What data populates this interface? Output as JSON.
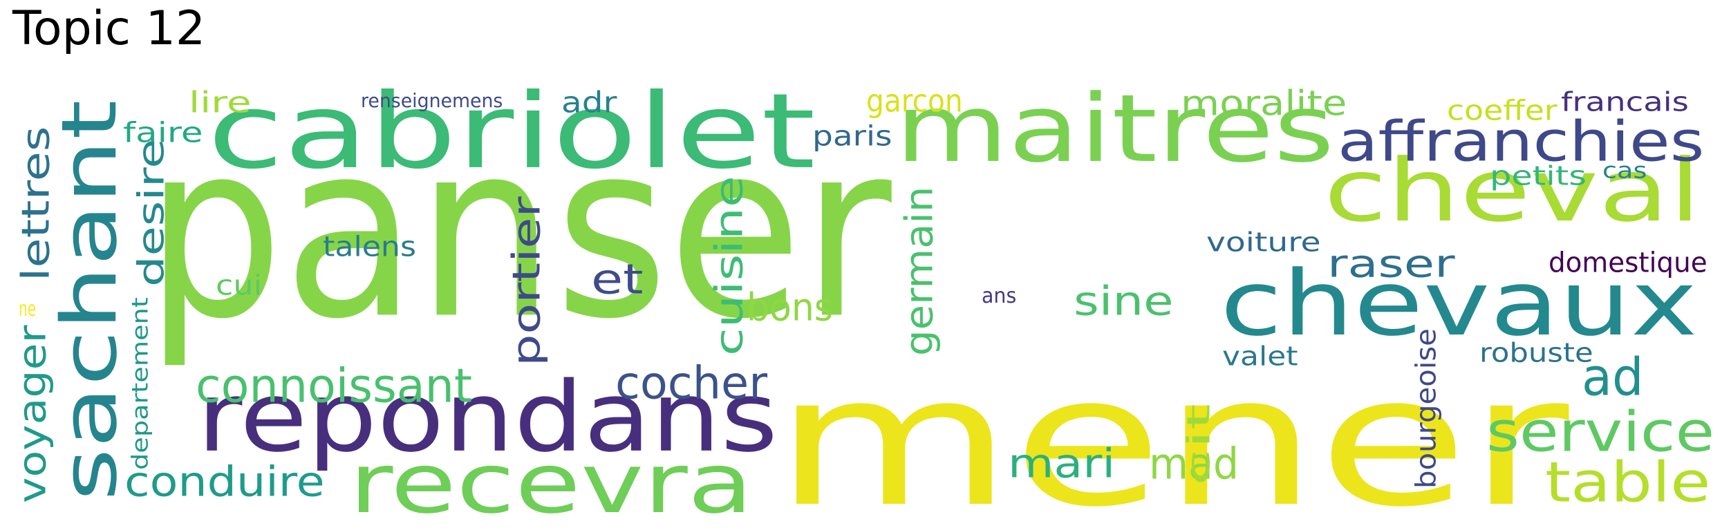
{
  "title": "Topic 12",
  "words": [
    {
      "text": "panser",
      "color": "#86d549"
    },
    {
      "text": "mener",
      "color": "#ece51b"
    },
    {
      "text": "cabriolet",
      "color": "#3bbb75"
    },
    {
      "text": "maitres",
      "color": "#7ad151"
    },
    {
      "text": "repondans",
      "color": "#472f7d"
    },
    {
      "text": "chevaux",
      "color": "#23898e"
    },
    {
      "text": "sachant",
      "color": "#25858e"
    },
    {
      "text": "recevra",
      "color": "#6ece58"
    },
    {
      "text": "cheval",
      "color": "#a8db34"
    },
    {
      "text": "affranchies",
      "color": "#3e4989"
    },
    {
      "text": "service",
      "color": "#5ec962"
    },
    {
      "text": "table",
      "color": "#b5de2b"
    },
    {
      "text": "connoissant",
      "color": "#48c16e"
    },
    {
      "text": "cocher",
      "color": "#3b528b"
    },
    {
      "text": "portier",
      "color": "#3e4a89"
    },
    {
      "text": "cuisine",
      "color": "#3dbc74"
    },
    {
      "text": "germain",
      "color": "#4ac16d"
    },
    {
      "text": "lettres",
      "color": "#2c728e"
    },
    {
      "text": "desire",
      "color": "#23898e"
    },
    {
      "text": "voyager",
      "color": "#1f9a8a"
    },
    {
      "text": "conduire",
      "color": "#1e9b8a"
    },
    {
      "text": "mari",
      "color": "#2ab07f"
    },
    {
      "text": "mad",
      "color": "#8fd744"
    },
    {
      "text": "cit",
      "color": "#a0da39"
    },
    {
      "text": "ad",
      "color": "#21908d"
    },
    {
      "text": "raser",
      "color": "#2e6f8e"
    },
    {
      "text": "sine",
      "color": "#4ac16d"
    },
    {
      "text": "et",
      "color": "#3e4c8a"
    },
    {
      "text": "bons",
      "color": "#8fd744"
    },
    {
      "text": "moralite",
      "color": "#7ad151"
    },
    {
      "text": "lire",
      "color": "#a0da39"
    },
    {
      "text": "faire",
      "color": "#22a884"
    },
    {
      "text": "adr",
      "color": "#26828e"
    },
    {
      "text": "paris",
      "color": "#31688e"
    },
    {
      "text": "garcon",
      "color": "#d8e219"
    },
    {
      "text": "coeffer",
      "color": "#c5e021"
    },
    {
      "text": "francais",
      "color": "#46307e"
    },
    {
      "text": "petits",
      "color": "#34b679"
    },
    {
      "text": "cas",
      "color": "#26828e"
    },
    {
      "text": "voiture",
      "color": "#31688e"
    },
    {
      "text": "domestique",
      "color": "#440154"
    },
    {
      "text": "talens",
      "color": "#287c8e"
    },
    {
      "text": "cui",
      "color": "#5ec962"
    },
    {
      "text": "departement",
      "color": "#1f988b"
    },
    {
      "text": "renseignemens",
      "color": "#3e4a89"
    },
    {
      "text": "valet",
      "color": "#2a788e"
    },
    {
      "text": "robuste",
      "color": "#2c728e"
    },
    {
      "text": "bourgeoise",
      "color": "#3e4989"
    },
    {
      "text": "ans",
      "color": "#443983"
    },
    {
      "text": "ne",
      "color": "#fde725"
    }
  ]
}
